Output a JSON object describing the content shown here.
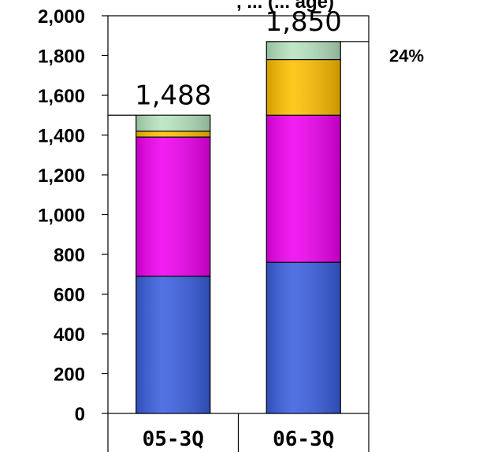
{
  "chart_data": {
    "type": "bar",
    "stacked": true,
    "title_fragment": ", ... (... age)",
    "categories": [
      "05-3Q",
      "06-3Q"
    ],
    "series": [
      {
        "color": "#3a5fe0",
        "values": [
          690,
          760
        ]
      },
      {
        "color": "#f000f0",
        "values": [
          700,
          740
        ]
      },
      {
        "color": "#ffc000",
        "values": [
          30,
          280
        ]
      },
      {
        "color": "#b7e4c0",
        "values": [
          80,
          90
        ]
      }
    ],
    "totals": [
      "1,488",
      "1,850"
    ],
    "yticks": [
      "0",
      "200",
      "400",
      "600",
      "800",
      "1,000",
      "1,200",
      "1,400",
      "1,600",
      "1,800",
      "2,000"
    ],
    "ylim": [
      0,
      2000
    ],
    "grid": false,
    "annotations": [
      {
        "text": "24%",
        "near_y": 1800
      }
    ]
  }
}
